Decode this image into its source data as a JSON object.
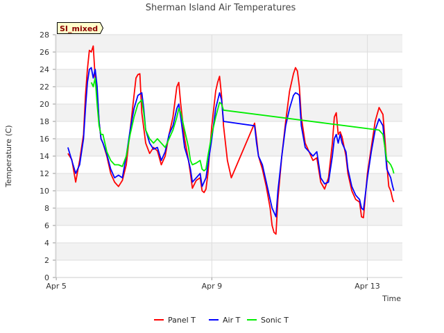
{
  "chart_data": {
    "type": "line",
    "title": "Sherman Island Air Temperatures",
    "xlabel": "Time",
    "ylabel": "Temperature (C)",
    "badge": "SI_mixed",
    "ylim": [
      0,
      28
    ],
    "yticks": [
      0,
      2,
      4,
      6,
      8,
      10,
      12,
      14,
      16,
      18,
      20,
      22,
      24,
      26,
      28
    ],
    "xlim": [
      5.0,
      13.65
    ],
    "xticks": [
      {
        "value": 5,
        "label": "Apr 5"
      },
      {
        "value": 9,
        "label": "Apr 9"
      },
      {
        "value": 13,
        "label": "Apr 13"
      }
    ],
    "grid": true,
    "legend_position": "bottom-center",
    "series": [
      {
        "name": "Panel T",
        "color": "#ff0000",
        "points": [
          [
            5.3,
            14.3
          ],
          [
            5.4,
            13.6
          ],
          [
            5.5,
            11.0
          ],
          [
            5.6,
            13.5
          ],
          [
            5.7,
            16.5
          ],
          [
            5.75,
            21.0
          ],
          [
            5.8,
            24.0
          ],
          [
            5.85,
            26.2
          ],
          [
            5.9,
            26.0
          ],
          [
            5.95,
            26.7
          ],
          [
            6.0,
            23.0
          ],
          [
            6.05,
            21.5
          ],
          [
            6.1,
            18.0
          ],
          [
            6.15,
            16.0
          ],
          [
            6.2,
            15.5
          ],
          [
            6.3,
            14.0
          ],
          [
            6.4,
            12.0
          ],
          [
            6.5,
            11.0
          ],
          [
            6.6,
            10.5
          ],
          [
            6.7,
            11.2
          ],
          [
            6.8,
            13.0
          ],
          [
            6.9,
            17.0
          ],
          [
            7.0,
            21.0
          ],
          [
            7.05,
            23.0
          ],
          [
            7.1,
            23.4
          ],
          [
            7.15,
            23.5
          ],
          [
            7.2,
            19.0
          ],
          [
            7.3,
            15.5
          ],
          [
            7.4,
            14.3
          ],
          [
            7.5,
            15.0
          ],
          [
            7.6,
            14.6
          ],
          [
            7.7,
            13.0
          ],
          [
            7.8,
            14.0
          ],
          [
            7.9,
            16.5
          ],
          [
            8.0,
            18.5
          ],
          [
            8.1,
            22.0
          ],
          [
            8.15,
            22.5
          ],
          [
            8.2,
            20.0
          ],
          [
            8.3,
            16.0
          ],
          [
            8.4,
            13.5
          ],
          [
            8.45,
            12.0
          ],
          [
            8.5,
            10.3
          ],
          [
            8.6,
            11.2
          ],
          [
            8.7,
            11.5
          ],
          [
            8.75,
            10.0
          ],
          [
            8.8,
            9.8
          ],
          [
            8.85,
            10.2
          ],
          [
            8.9,
            12.0
          ],
          [
            9.0,
            17.5
          ],
          [
            9.1,
            21.5
          ],
          [
            9.15,
            22.5
          ],
          [
            9.2,
            23.2
          ],
          [
            9.25,
            21.0
          ],
          [
            9.3,
            17.5
          ],
          [
            9.4,
            13.5
          ],
          [
            9.5,
            11.5
          ],
          [
            10.1,
            17.8
          ],
          [
            10.15,
            16.0
          ],
          [
            10.2,
            14.0
          ],
          [
            10.3,
            12.5
          ],
          [
            10.4,
            10.5
          ],
          [
            10.5,
            8.0
          ],
          [
            10.55,
            6.0
          ],
          [
            10.6,
            5.2
          ],
          [
            10.65,
            5.0
          ],
          [
            10.7,
            9.0
          ],
          [
            10.8,
            14.0
          ],
          [
            10.9,
            18.0
          ],
          [
            11.0,
            21.5
          ],
          [
            11.1,
            23.5
          ],
          [
            11.15,
            24.2
          ],
          [
            11.2,
            23.8
          ],
          [
            11.25,
            22.0
          ],
          [
            11.3,
            18.5
          ],
          [
            11.4,
            15.5
          ],
          [
            11.5,
            14.5
          ],
          [
            11.6,
            13.5
          ],
          [
            11.7,
            13.8
          ],
          [
            11.8,
            11.0
          ],
          [
            11.9,
            10.2
          ],
          [
            12.0,
            11.5
          ],
          [
            12.1,
            15.5
          ],
          [
            12.15,
            18.5
          ],
          [
            12.2,
            19.0
          ],
          [
            12.25,
            16.5
          ],
          [
            12.3,
            16.8
          ],
          [
            12.35,
            16.2
          ],
          [
            12.45,
            14.0
          ],
          [
            12.5,
            12.0
          ],
          [
            12.6,
            10.0
          ],
          [
            12.7,
            9.0
          ],
          [
            12.8,
            8.7
          ],
          [
            12.85,
            7.0
          ],
          [
            12.9,
            6.9
          ],
          [
            13.0,
            12.0
          ],
          [
            13.1,
            15.0
          ],
          [
            13.2,
            18.0
          ],
          [
            13.3,
            19.6
          ],
          [
            13.4,
            18.8
          ],
          [
            13.45,
            16.0
          ],
          [
            13.5,
            13.0
          ],
          [
            13.55,
            10.5
          ],
          [
            13.6,
            10.0
          ],
          [
            13.65,
            9.0
          ],
          [
            13.68,
            8.7
          ]
        ]
      },
      {
        "name": "Air T",
        "color": "#0000ff",
        "points": [
          [
            5.3,
            15.0
          ],
          [
            5.4,
            13.5
          ],
          [
            5.5,
            12.0
          ],
          [
            5.6,
            13.0
          ],
          [
            5.7,
            16.0
          ],
          [
            5.75,
            19.5
          ],
          [
            5.8,
            22.5
          ],
          [
            5.85,
            24.0
          ],
          [
            5.9,
            24.2
          ],
          [
            5.95,
            23.0
          ],
          [
            6.0,
            24.0
          ],
          [
            6.05,
            22.0
          ],
          [
            6.1,
            18.0
          ],
          [
            6.15,
            16.0
          ],
          [
            6.2,
            15.5
          ],
          [
            6.3,
            14.2
          ],
          [
            6.4,
            12.5
          ],
          [
            6.5,
            11.5
          ],
          [
            6.6,
            11.8
          ],
          [
            6.7,
            11.5
          ],
          [
            6.8,
            14.0
          ],
          [
            6.9,
            17.0
          ],
          [
            7.0,
            19.5
          ],
          [
            7.1,
            21.0
          ],
          [
            7.2,
            21.3
          ],
          [
            7.25,
            19.5
          ],
          [
            7.3,
            17.0
          ],
          [
            7.4,
            15.5
          ],
          [
            7.5,
            14.8
          ],
          [
            7.6,
            15.0
          ],
          [
            7.7,
            13.5
          ],
          [
            7.8,
            14.5
          ],
          [
            7.9,
            16.5
          ],
          [
            8.0,
            17.5
          ],
          [
            8.1,
            19.5
          ],
          [
            8.15,
            20.0
          ],
          [
            8.2,
            18.5
          ],
          [
            8.3,
            15.0
          ],
          [
            8.4,
            13.5
          ],
          [
            8.45,
            12.5
          ],
          [
            8.5,
            11.0
          ],
          [
            8.6,
            11.5
          ],
          [
            8.7,
            12.0
          ],
          [
            8.75,
            10.5
          ],
          [
            8.8,
            11.0
          ],
          [
            8.85,
            11.5
          ],
          [
            8.9,
            13.0
          ],
          [
            9.0,
            16.0
          ],
          [
            9.1,
            19.5
          ],
          [
            9.2,
            21.3
          ],
          [
            9.25,
            20.5
          ],
          [
            9.3,
            18.0
          ],
          [
            10.1,
            17.5
          ],
          [
            10.15,
            15.5
          ],
          [
            10.2,
            14.0
          ],
          [
            10.3,
            13.0
          ],
          [
            10.4,
            11.0
          ],
          [
            10.5,
            9.0
          ],
          [
            10.55,
            8.0
          ],
          [
            10.6,
            7.5
          ],
          [
            10.65,
            7.0
          ],
          [
            10.7,
            10.0
          ],
          [
            10.8,
            14.0
          ],
          [
            10.9,
            17.5
          ],
          [
            11.0,
            19.5
          ],
          [
            11.1,
            21.0
          ],
          [
            11.15,
            21.3
          ],
          [
            11.2,
            21.2
          ],
          [
            11.25,
            21.0
          ],
          [
            11.3,
            17.5
          ],
          [
            11.4,
            15.0
          ],
          [
            11.5,
            14.5
          ],
          [
            11.6,
            14.0
          ],
          [
            11.7,
            14.5
          ],
          [
            11.8,
            11.5
          ],
          [
            11.9,
            10.8
          ],
          [
            12.0,
            11.0
          ],
          [
            12.1,
            14.0
          ],
          [
            12.15,
            16.0
          ],
          [
            12.2,
            16.5
          ],
          [
            12.25,
            15.5
          ],
          [
            12.3,
            16.5
          ],
          [
            12.35,
            15.5
          ],
          [
            12.45,
            14.5
          ],
          [
            12.5,
            12.5
          ],
          [
            12.6,
            10.5
          ],
          [
            12.7,
            9.5
          ],
          [
            12.8,
            9.0
          ],
          [
            12.85,
            8.0
          ],
          [
            12.9,
            7.8
          ],
          [
            13.0,
            11.5
          ],
          [
            13.1,
            14.5
          ],
          [
            13.2,
            17.0
          ],
          [
            13.3,
            18.3
          ],
          [
            13.4,
            17.5
          ],
          [
            13.45,
            15.0
          ],
          [
            13.5,
            12.5
          ],
          [
            13.55,
            12.0
          ],
          [
            13.6,
            11.5
          ],
          [
            13.65,
            10.5
          ],
          [
            13.68,
            10.0
          ]
        ]
      },
      {
        "name": "Sonic T",
        "color": "#00ee00",
        "points": [
          [
            5.9,
            22.5
          ],
          [
            5.95,
            22.0
          ],
          [
            6.0,
            23.0
          ],
          [
            6.05,
            20.0
          ],
          [
            6.1,
            17.5
          ],
          [
            6.15,
            16.5
          ],
          [
            6.2,
            16.5
          ],
          [
            6.3,
            14.5
          ],
          [
            6.4,
            13.5
          ],
          [
            6.5,
            13.0
          ],
          [
            6.6,
            13.0
          ],
          [
            6.7,
            12.8
          ],
          [
            6.8,
            14.0
          ],
          [
            6.9,
            16.5
          ],
          [
            7.0,
            18.5
          ],
          [
            7.1,
            20.0
          ],
          [
            7.2,
            20.5
          ],
          [
            7.25,
            19.0
          ],
          [
            7.3,
            17.0
          ],
          [
            7.4,
            16.0
          ],
          [
            7.5,
            15.5
          ],
          [
            7.6,
            16.0
          ],
          [
            7.7,
            15.5
          ],
          [
            7.8,
            15.0
          ],
          [
            7.9,
            16.0
          ],
          [
            8.0,
            17.0
          ],
          [
            8.1,
            18.5
          ],
          [
            8.15,
            19.5
          ],
          [
            8.2,
            19.0
          ],
          [
            8.3,
            17.0
          ],
          [
            8.4,
            15.0
          ],
          [
            8.45,
            13.5
          ],
          [
            8.5,
            13.0
          ],
          [
            8.6,
            13.2
          ],
          [
            8.7,
            13.5
          ],
          [
            8.75,
            12.5
          ],
          [
            8.8,
            12.3
          ],
          [
            8.85,
            12.5
          ],
          [
            8.9,
            14.0
          ],
          [
            9.0,
            16.5
          ],
          [
            9.1,
            18.5
          ],
          [
            9.2,
            20.2
          ],
          [
            9.25,
            20.0
          ],
          [
            9.3,
            19.3
          ],
          [
            13.3,
            17.0
          ],
          [
            13.4,
            16.5
          ],
          [
            13.45,
            15.0
          ],
          [
            13.5,
            13.5
          ],
          [
            13.55,
            13.3
          ],
          [
            13.6,
            13.0
          ],
          [
            13.65,
            12.5
          ],
          [
            13.68,
            12.0
          ]
        ]
      }
    ]
  }
}
